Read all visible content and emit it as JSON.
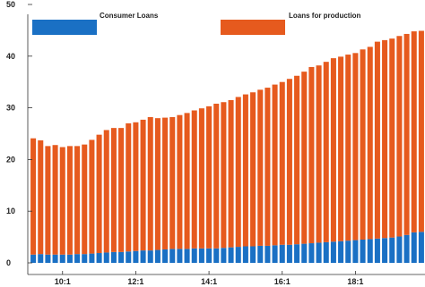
{
  "chart_data": {
    "type": "bar",
    "stacked": true,
    "title": "",
    "xlabel": "",
    "ylabel": "",
    "ylim": [
      0,
      50
    ],
    "yticks": [
      0,
      10,
      20,
      30,
      40,
      50
    ],
    "grid": false,
    "legend_position": "top",
    "x_tick_labels": [
      "10:1",
      "12:1",
      "14:1",
      "16:1",
      "18:1"
    ],
    "x_tick_indices": [
      4,
      14,
      24,
      34,
      44
    ],
    "series": [
      {
        "name": "Consumer Loans",
        "color": "#1a70c4",
        "values": [
          1.6,
          1.7,
          1.6,
          1.6,
          1.6,
          1.6,
          1.7,
          1.7,
          1.8,
          1.9,
          2.0,
          2.1,
          2.1,
          2.2,
          2.3,
          2.4,
          2.4,
          2.5,
          2.6,
          2.7,
          2.7,
          2.7,
          2.8,
          2.8,
          2.8,
          2.8,
          2.9,
          3.0,
          3.1,
          3.2,
          3.2,
          3.3,
          3.3,
          3.4,
          3.5,
          3.5,
          3.6,
          3.7,
          3.8,
          3.9,
          4.0,
          4.1,
          4.2,
          4.3,
          4.4,
          4.5,
          4.6,
          4.7,
          4.8,
          4.9,
          5.1,
          5.4,
          5.9,
          6.0
        ]
      },
      {
        "name": "Loans for production",
        "color": "#e65a1e",
        "values": [
          22.5,
          22.0,
          21.0,
          21.2,
          20.8,
          21.0,
          20.9,
          21.2,
          22.0,
          22.9,
          23.7,
          24.0,
          24.0,
          24.8,
          24.9,
          25.3,
          25.8,
          25.5,
          25.5,
          25.5,
          25.9,
          26.3,
          26.7,
          27.1,
          27.5,
          28.0,
          28.2,
          28.5,
          29.0,
          29.4,
          29.8,
          30.2,
          30.6,
          31.1,
          31.5,
          32.1,
          32.6,
          33.3,
          34.1,
          34.3,
          34.9,
          35.5,
          35.7,
          36.0,
          36.2,
          36.8,
          37.2,
          38.1,
          38.3,
          38.5,
          38.8,
          38.9,
          38.9,
          38.9
        ]
      }
    ]
  }
}
